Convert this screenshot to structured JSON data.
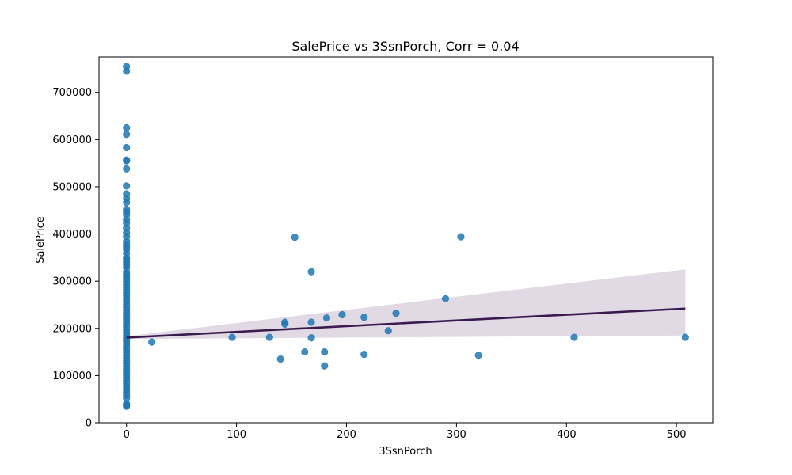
{
  "chart_data": {
    "type": "scatter",
    "title": "SalePrice vs 3SsnPorch, Corr = 0.04",
    "xlabel": "3SsnPorch",
    "ylabel": "SalePrice",
    "xlim": [
      -25,
      533
    ],
    "ylim": [
      0,
      775000
    ],
    "xticks": [
      0,
      100,
      200,
      300,
      400,
      500
    ],
    "yticks": [
      0,
      100000,
      200000,
      300000,
      400000,
      500000,
      600000,
      700000
    ],
    "grid": false,
    "point_color": "#1f77b4",
    "line_color": "#3b1a50",
    "band_color": "#e1d9e3",
    "regression_line": {
      "x": [
        0,
        508
      ],
      "y": [
        180500,
        242000
      ]
    },
    "confidence_band": {
      "x": [
        0,
        508
      ],
      "lower": [
        177500,
        185000
      ],
      "upper": [
        183500,
        325000
      ]
    },
    "points": [
      {
        "x": 0,
        "y": 755000
      },
      {
        "x": 0,
        "y": 745000
      },
      {
        "x": 0,
        "y": 625000
      },
      {
        "x": 0,
        "y": 611000
      },
      {
        "x": 0,
        "y": 582933
      },
      {
        "x": 0,
        "y": 556581
      },
      {
        "x": 0,
        "y": 555000
      },
      {
        "x": 0,
        "y": 538000
      },
      {
        "x": 0,
        "y": 501837
      },
      {
        "x": 0,
        "y": 485000
      },
      {
        "x": 0,
        "y": 475000
      },
      {
        "x": 0,
        "y": 466500
      },
      {
        "x": 0,
        "y": 451950
      },
      {
        "x": 0,
        "y": 446261
      },
      {
        "x": 0,
        "y": 440000
      },
      {
        "x": 0,
        "y": 430000
      },
      {
        "x": 0,
        "y": 423000
      },
      {
        "x": 0,
        "y": 412500
      },
      {
        "x": 0,
        "y": 402861
      },
      {
        "x": 0,
        "y": 395000
      },
      {
        "x": 0,
        "y": 385000
      },
      {
        "x": 0,
        "y": 378500
      },
      {
        "x": 0,
        "y": 372402
      },
      {
        "x": 0,
        "y": 367294
      },
      {
        "x": 0,
        "y": 359100
      },
      {
        "x": 0,
        "y": 350000
      },
      {
        "x": 0,
        "y": 345000
      },
      {
        "x": 0,
        "y": 340000
      },
      {
        "x": 0,
        "y": 335000
      },
      {
        "x": 0,
        "y": 328900
      },
      {
        "x": 0,
        "y": 320000
      },
      {
        "x": 0,
        "y": 314813
      },
      {
        "x": 0,
        "y": 310000
      },
      {
        "x": 0,
        "y": 305000
      },
      {
        "x": 0,
        "y": 299800
      },
      {
        "x": 0,
        "y": 293077
      },
      {
        "x": 0,
        "y": 287000
      },
      {
        "x": 0,
        "y": 281000
      },
      {
        "x": 0,
        "y": 275000
      },
      {
        "x": 0,
        "y": 269500
      },
      {
        "x": 0,
        "y": 263000
      },
      {
        "x": 0,
        "y": 257500
      },
      {
        "x": 0,
        "y": 251000
      },
      {
        "x": 0,
        "y": 245000
      },
      {
        "x": 0,
        "y": 239000
      },
      {
        "x": 0,
        "y": 233000
      },
      {
        "x": 0,
        "y": 227000
      },
      {
        "x": 0,
        "y": 221000
      },
      {
        "x": 0,
        "y": 215000
      },
      {
        "x": 0,
        "y": 209000
      },
      {
        "x": 0,
        "y": 203000
      },
      {
        "x": 0,
        "y": 197000
      },
      {
        "x": 0,
        "y": 191000
      },
      {
        "x": 0,
        "y": 185000
      },
      {
        "x": 0,
        "y": 179000
      },
      {
        "x": 0,
        "y": 173000
      },
      {
        "x": 0,
        "y": 167000
      },
      {
        "x": 0,
        "y": 161000
      },
      {
        "x": 0,
        "y": 155000
      },
      {
        "x": 0,
        "y": 149000
      },
      {
        "x": 0,
        "y": 143000
      },
      {
        "x": 0,
        "y": 137000
      },
      {
        "x": 0,
        "y": 131000
      },
      {
        "x": 0,
        "y": 125000
      },
      {
        "x": 0,
        "y": 119000
      },
      {
        "x": 0,
        "y": 113000
      },
      {
        "x": 0,
        "y": 107000
      },
      {
        "x": 0,
        "y": 101000
      },
      {
        "x": 0,
        "y": 95000
      },
      {
        "x": 0,
        "y": 89000
      },
      {
        "x": 0,
        "y": 83000
      },
      {
        "x": 0,
        "y": 77000
      },
      {
        "x": 0,
        "y": 71000
      },
      {
        "x": 0,
        "y": 65000
      },
      {
        "x": 0,
        "y": 58500
      },
      {
        "x": 0,
        "y": 52000
      },
      {
        "x": 0,
        "y": 40000
      },
      {
        "x": 0,
        "y": 37900
      },
      {
        "x": 0,
        "y": 34900
      },
      {
        "x": 23,
        "y": 171000
      },
      {
        "x": 96,
        "y": 181000
      },
      {
        "x": 130,
        "y": 181000
      },
      {
        "x": 140,
        "y": 135000
      },
      {
        "x": 144,
        "y": 213000
      },
      {
        "x": 144,
        "y": 209000
      },
      {
        "x": 153,
        "y": 393000
      },
      {
        "x": 162,
        "y": 150000
      },
      {
        "x": 168,
        "y": 320000
      },
      {
        "x": 168,
        "y": 213000
      },
      {
        "x": 168,
        "y": 180000
      },
      {
        "x": 180,
        "y": 150000
      },
      {
        "x": 180,
        "y": 120500
      },
      {
        "x": 182,
        "y": 222000
      },
      {
        "x": 196,
        "y": 229000
      },
      {
        "x": 216,
        "y": 223500
      },
      {
        "x": 216,
        "y": 145000
      },
      {
        "x": 238,
        "y": 195000
      },
      {
        "x": 245,
        "y": 232000
      },
      {
        "x": 290,
        "y": 263000
      },
      {
        "x": 304,
        "y": 394000
      },
      {
        "x": 320,
        "y": 143000
      },
      {
        "x": 407,
        "y": 181000
      },
      {
        "x": 508,
        "y": 181000
      }
    ]
  }
}
